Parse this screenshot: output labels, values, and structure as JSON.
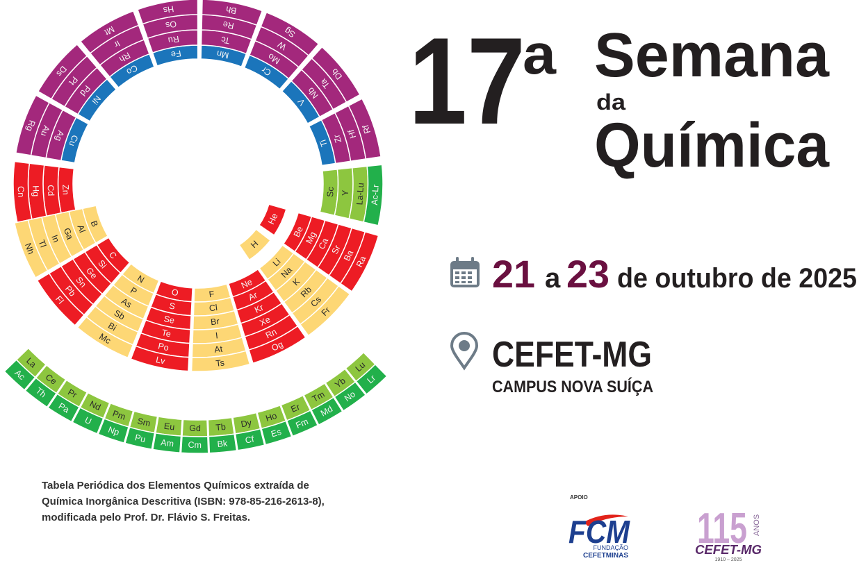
{
  "periodic_table": {
    "groups": [
      {
        "color": "#1b75bb",
        "elements": [
          "Ti",
          "V",
          "Cr",
          "Mn",
          "Fe",
          "Co",
          "Ni",
          "Cu"
        ]
      },
      {
        "color": "#a3287c",
        "elements": [
          "Zr",
          "Nb",
          "Mo",
          "Tc",
          "Ru",
          "Rh",
          "Pd",
          "Ag"
        ]
      },
      {
        "color": "#a3287c",
        "elements": [
          "Hf",
          "Ta",
          "W",
          "Re",
          "Os",
          "Ir",
          "Pt",
          "Au"
        ]
      },
      {
        "color": "#a3287c",
        "elements": [
          "Rf",
          "Db",
          "Sg",
          "Bh",
          "Hs",
          "Mt",
          "Ds",
          "Rg"
        ]
      },
      {
        "color": "#ed1c24",
        "elements": [
          "Zn",
          "Cd",
          "Hg",
          "Cn"
        ]
      },
      {
        "color": "#8dc63f",
        "elements": [
          "Sc",
          "Y",
          "La-Lu"
        ]
      },
      {
        "color": "#22b04b",
        "elements": [
          "Ac-Lr"
        ]
      },
      {
        "color": "#fdd775",
        "elements": [
          "H"
        ]
      },
      {
        "color": "#ed1c24",
        "elements": [
          "He"
        ]
      },
      {
        "color": "#ed1c24",
        "elements": [
          "Be",
          "Mg",
          "Ca",
          "Sr",
          "Ba",
          "Ra"
        ]
      },
      {
        "color": "#fdd775",
        "elements": [
          "Li",
          "Na",
          "K",
          "Rb",
          "Cs",
          "Fr"
        ]
      },
      {
        "color": "#ed1c24",
        "elements": [
          "Ne",
          "Ar",
          "Kr",
          "Xe",
          "Rn",
          "Og"
        ]
      },
      {
        "color": "#fdd775",
        "elements": [
          "F",
          "Cl",
          "Br",
          "I",
          "At",
          "Ts"
        ]
      },
      {
        "color": "#ed1c24",
        "elements": [
          "O",
          "S",
          "Se",
          "Te",
          "Po",
          "Lv"
        ]
      },
      {
        "color": "#fdd775",
        "elements": [
          "N",
          "P",
          "As",
          "Sb",
          "Bi",
          "Mc"
        ]
      },
      {
        "color": "#ed1c24",
        "elements": [
          "C",
          "Si",
          "Ge",
          "Sn",
          "Pb",
          "Fl"
        ]
      },
      {
        "color": "#fdd775",
        "elements": [
          "B",
          "Al",
          "Ga",
          "In",
          "Tl",
          "Nh"
        ]
      },
      {
        "color": "#8dc63f",
        "elements": [
          "La",
          "Ce",
          "Pr",
          "Nd",
          "Pm",
          "Sm",
          "Eu",
          "Gd",
          "Tb",
          "Dy",
          "Ho",
          "Er",
          "Tm",
          "Yb",
          "Lu"
        ]
      },
      {
        "color": "#22b04b",
        "elements": [
          "Ac",
          "Th",
          "Pa",
          "U",
          "Np",
          "Pu",
          "Am",
          "Cm",
          "Bk",
          "Cf",
          "Es",
          "Fm",
          "Md",
          "No",
          "Lr"
        ]
      }
    ]
  },
  "event": {
    "edition": "17",
    "ordinal": "a",
    "title_line1": "Semana",
    "title_connector": "da",
    "title_line2": "Química"
  },
  "date": {
    "start": "21",
    "connector": "a",
    "end": "23",
    "rest": "de outubro de 2025"
  },
  "location": {
    "name": "CEFET-MG",
    "campus": "CAMPUS NOVA SUÍÇA"
  },
  "credit": [
    "Tabela Periódica dos Elementos Químicos extraída de",
    "Química Inorgânica Descritiva (ISBN: 978-85-216-2613-8),",
    "modificada pelo Prof. Dr. Flávio S. Freitas."
  ],
  "sponsors": {
    "label": "APOIO",
    "fcm": {
      "acronym": "FCM",
      "line1": "FUNDAÇÃO",
      "line2": "CEFETMINAS"
    },
    "anniversary": {
      "number": "115",
      "word": "ANOS",
      "name": "CEFET-MG",
      "years": "1910 – 2025"
    }
  }
}
